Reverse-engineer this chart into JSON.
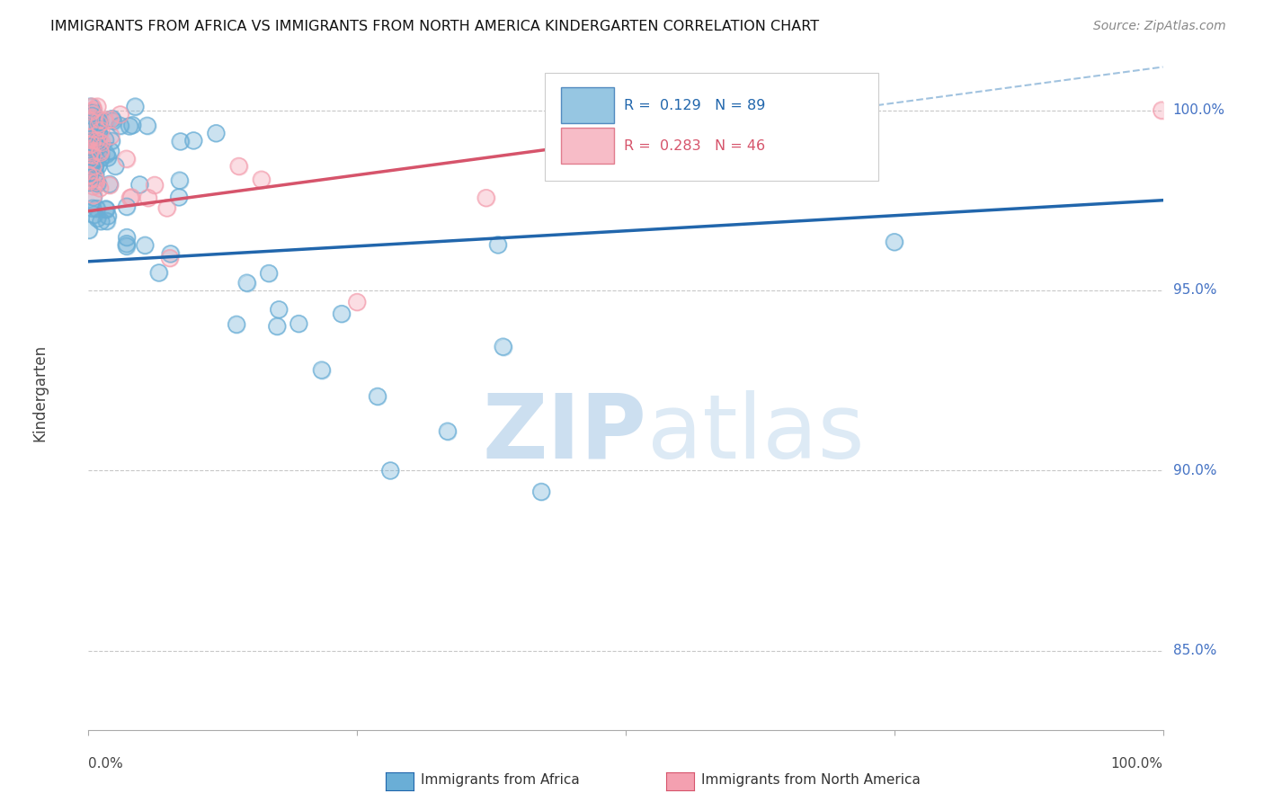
{
  "title": "IMMIGRANTS FROM AFRICA VS IMMIGRANTS FROM NORTH AMERICA KINDERGARTEN CORRELATION CHART",
  "source": "Source: ZipAtlas.com",
  "ylabel": "Kindergarten",
  "xmin": 0.0,
  "xmax": 1.0,
  "ymin": 0.828,
  "ymax": 1.015,
  "legend_africa": "Immigrants from Africa",
  "legend_na": "Immigrants from North America",
  "R_africa": 0.129,
  "N_africa": 89,
  "R_na": 0.283,
  "N_na": 46,
  "color_africa": "#6aaed6",
  "color_na": "#f4a0b0",
  "color_africa_line": "#2166ac",
  "color_na_line": "#d6546b",
  "color_right_axis": "#4472c4",
  "color_dashed": "#8ab4d8",
  "watermark_color": "#ccdff0",
  "ytick_values": [
    1.0,
    0.95,
    0.9,
    0.85
  ],
  "ytick_labels": [
    "100.0%",
    "95.0%",
    "90.0%",
    "85.0%"
  ],
  "africa_line_x0": 0.0,
  "africa_line_x1": 1.0,
  "africa_line_y0": 0.958,
  "africa_line_y1": 0.975,
  "na_line_x0": 0.0,
  "na_line_x1": 0.45,
  "na_line_y0": 0.972,
  "na_line_y1": 0.99
}
